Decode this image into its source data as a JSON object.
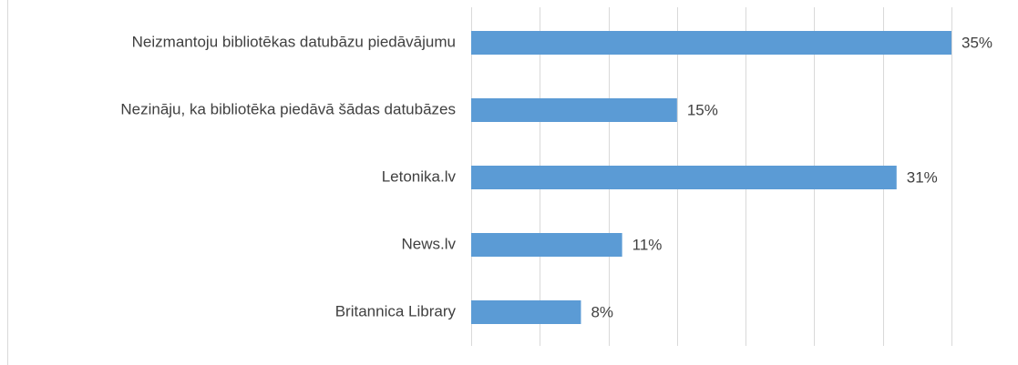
{
  "chart_data": {
    "type": "bar",
    "orientation": "horizontal",
    "categories": [
      "Neizmantoju bibliotēkas datubāzu piedāvājumu",
      "Nezināju, ka bibliotēka piedāvā šādas datubāzes",
      "Letonika.lv",
      "News.lv",
      "Britannica Library"
    ],
    "values": [
      35,
      15,
      31,
      11,
      8
    ],
    "value_labels": [
      "35%",
      "15%",
      "31%",
      "11%",
      "8%"
    ],
    "color": "#5b9bd5",
    "xlim": [
      0,
      35
    ],
    "xticks": [
      0,
      5,
      10,
      15,
      20,
      25,
      30,
      35
    ],
    "grid": true
  }
}
